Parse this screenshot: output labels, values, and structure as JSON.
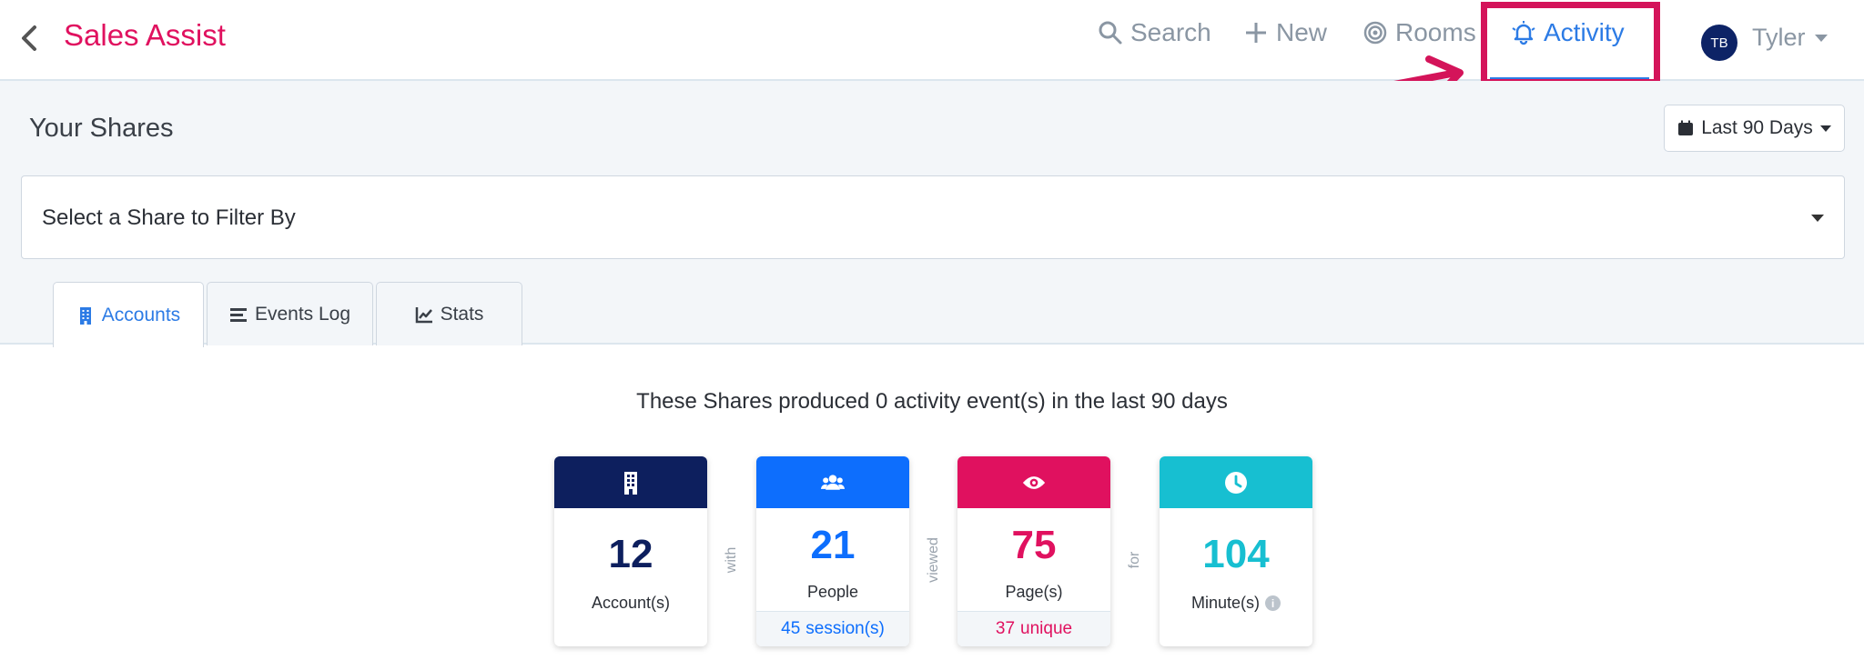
{
  "app": {
    "title": "Sales Assist"
  },
  "nav": {
    "search": "Search",
    "new": "New",
    "rooms": "Rooms",
    "activity": "Activity"
  },
  "user": {
    "initials": "TB",
    "name": "Tyler"
  },
  "page": {
    "title": "Your Shares"
  },
  "date_range": {
    "label": "Last 90 Days"
  },
  "share_filter": {
    "placeholder": "Select a Share to Filter By"
  },
  "tabs": [
    {
      "label": "Accounts",
      "icon": "building-icon",
      "active": true
    },
    {
      "label": "Events Log",
      "icon": "list-icon",
      "active": false
    },
    {
      "label": "Stats",
      "icon": "chart-line-icon",
      "active": false
    }
  ],
  "summary": {
    "text": "These Shares produced 0 activity event(s) in the last 90 days"
  },
  "cards": {
    "accounts": {
      "value": "12",
      "label": "Account(s)",
      "color": "#0d1f5e",
      "icon": "building-icon"
    },
    "people": {
      "value": "21",
      "label": "People",
      "footer_number": "45",
      "footer_text": "session(s)",
      "color": "#0d6efd",
      "icon": "users-icon"
    },
    "pages": {
      "value": "75",
      "label": "Page(s)",
      "footer_number": "37",
      "footer_text": "unique",
      "color": "#e0115f",
      "icon": "eye-icon"
    },
    "minutes": {
      "value": "104",
      "label": "Minute(s)",
      "color": "#17bfd1",
      "icon": "clock-icon"
    }
  },
  "connectors": {
    "with": "with",
    "viewed": "viewed",
    "for": "for"
  },
  "colors": {
    "brand": "#e0115f",
    "accent": "#2c7be5",
    "highlight": "#d4145a"
  }
}
